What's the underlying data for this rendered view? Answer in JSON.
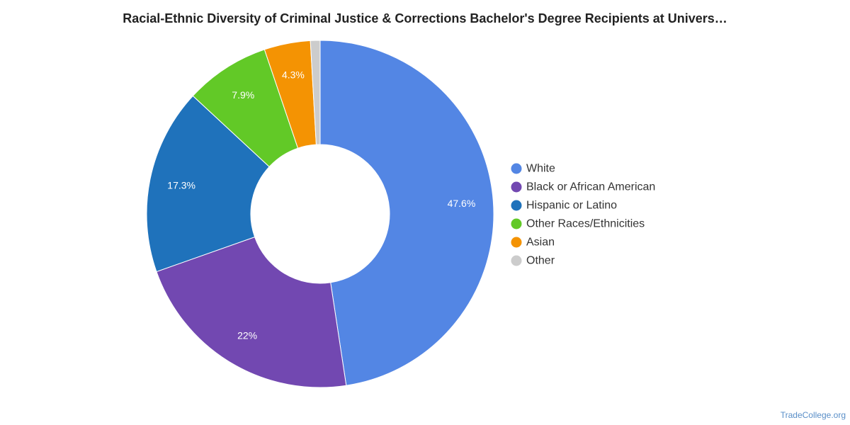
{
  "chart_data": {
    "type": "pie",
    "title": "Racial-Ethnic Diversity of Criminal Justice & Corrections Bachelor's Degree Recipients at Univers…",
    "legend_position": "right",
    "slices": [
      {
        "name": "White",
        "value": 47.6,
        "label": "47.6%",
        "color": "#5386e4"
      },
      {
        "name": "Black or African American",
        "value": 22.0,
        "label": "22%",
        "color": "#7248b1"
      },
      {
        "name": "Hispanic or Latino",
        "value": 17.3,
        "label": "17.3%",
        "color": "#1f72bb"
      },
      {
        "name": "Other Races/Ethnicities",
        "value": 7.9,
        "label": "7.9%",
        "color": "#62c927"
      },
      {
        "name": "Asian",
        "value": 4.3,
        "label": "4.3%",
        "color": "#f49303"
      },
      {
        "name": "Other",
        "value": 0.9,
        "label": "",
        "color": "#cccccc"
      }
    ]
  },
  "footer": {
    "watermark": "TradeCollege.org"
  }
}
